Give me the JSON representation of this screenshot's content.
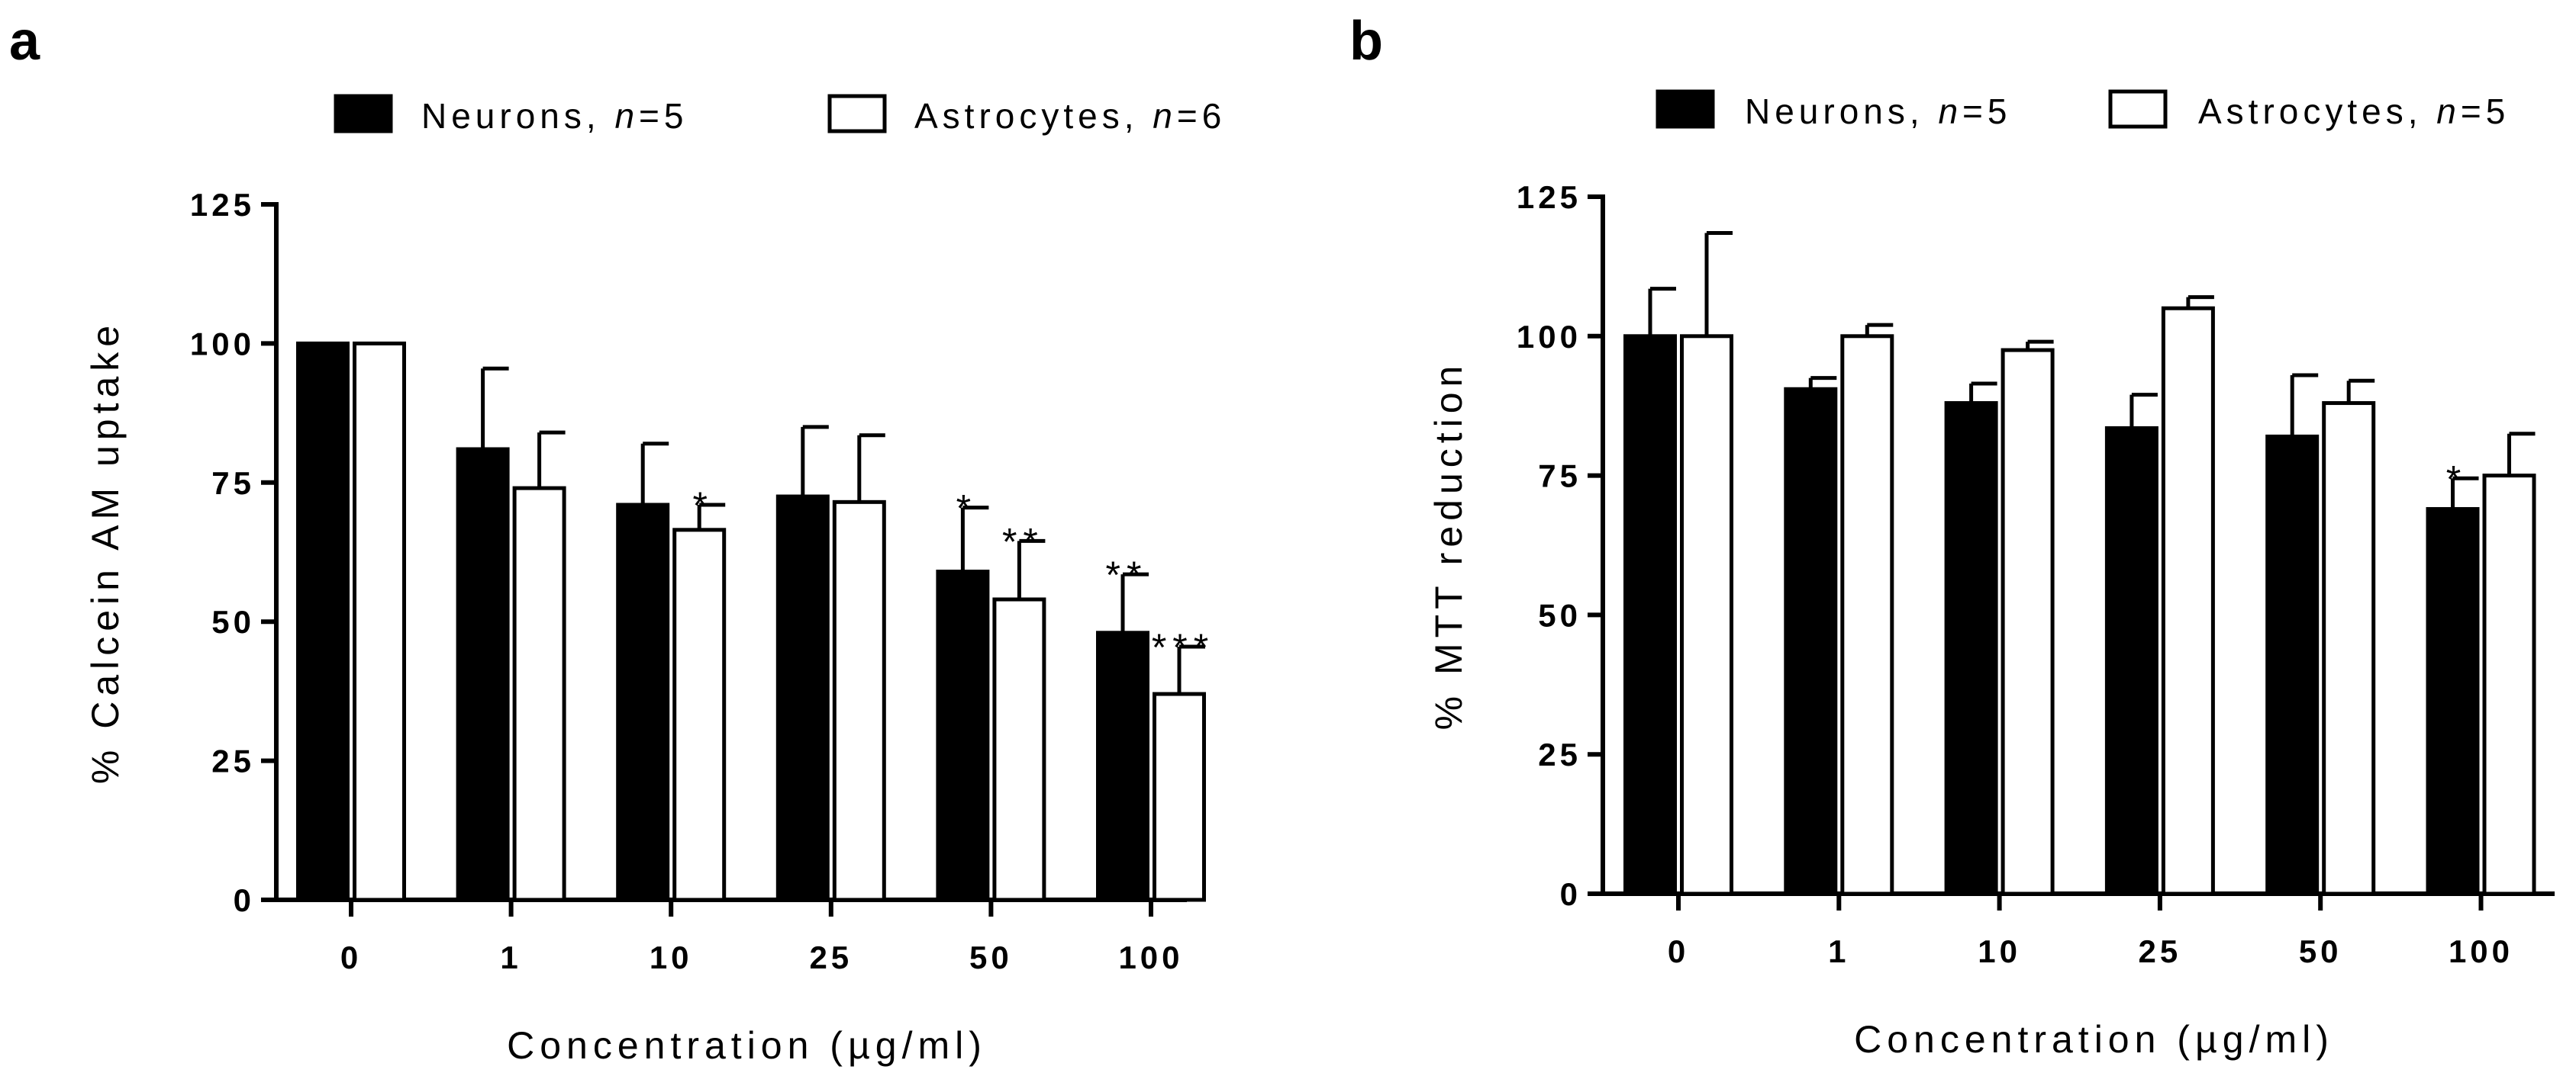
{
  "chart_data": [
    {
      "panel": "a",
      "type": "bar",
      "xlabel": "Concentration (µg/ml)",
      "ylabel": "% Calcein AM uptake",
      "ylim": [
        0,
        125
      ],
      "yticks": [
        "0",
        "25",
        "50",
        "75",
        "100",
        "125"
      ],
      "categories": [
        "0",
        "1",
        "10",
        "25",
        "50",
        "100"
      ],
      "series": [
        {
          "name": "Neurons, ",
          "n_label": "n",
          "n_value": "=5",
          "fill": "#000000",
          "values": [
            100,
            81,
            71,
            72.5,
            59,
            48
          ],
          "errors": [
            0,
            14.5,
            11,
            12.5,
            11.5,
            10.5
          ],
          "stars": [
            "",
            "",
            "",
            "",
            "*",
            "**"
          ]
        },
        {
          "name": "Astrocytes, ",
          "n_label": "n",
          "n_value": "=6",
          "fill": "#ffffff",
          "values": [
            100,
            74,
            66.5,
            71.5,
            54,
            37
          ],
          "errors": [
            0,
            10,
            4.5,
            12,
            10.5,
            8.5
          ],
          "stars": [
            "",
            "",
            "*",
            "",
            "**",
            "***"
          ]
        }
      ]
    },
    {
      "panel": "b",
      "type": "bar",
      "xlabel": "Concentration (µg/ml)",
      "ylabel": "% MTT reduction",
      "ylim": [
        0,
        125
      ],
      "yticks": [
        "0",
        "25",
        "50",
        "75",
        "100",
        "125"
      ],
      "categories": [
        "0",
        "1",
        "10",
        "25",
        "50",
        "100"
      ],
      "series": [
        {
          "name": "Neurons, ",
          "n_label": "n",
          "n_value": "=5",
          "fill": "#000000",
          "values": [
            100,
            90.5,
            88,
            83.5,
            82,
            69
          ],
          "errors": [
            8.5,
            2,
            3.5,
            6,
            11,
            5.5
          ],
          "stars": [
            "",
            "",
            "",
            "",
            "",
            "*"
          ]
        },
        {
          "name": "Astrocytes, ",
          "n_label": "n",
          "n_value": "=5",
          "fill": "#ffffff",
          "values": [
            100,
            100,
            97.5,
            105,
            88,
            75
          ],
          "errors": [
            18.5,
            2,
            1.5,
            2,
            4,
            7.5
          ],
          "stars": [
            "",
            "",
            "",
            "",
            "",
            ""
          ]
        }
      ]
    }
  ]
}
